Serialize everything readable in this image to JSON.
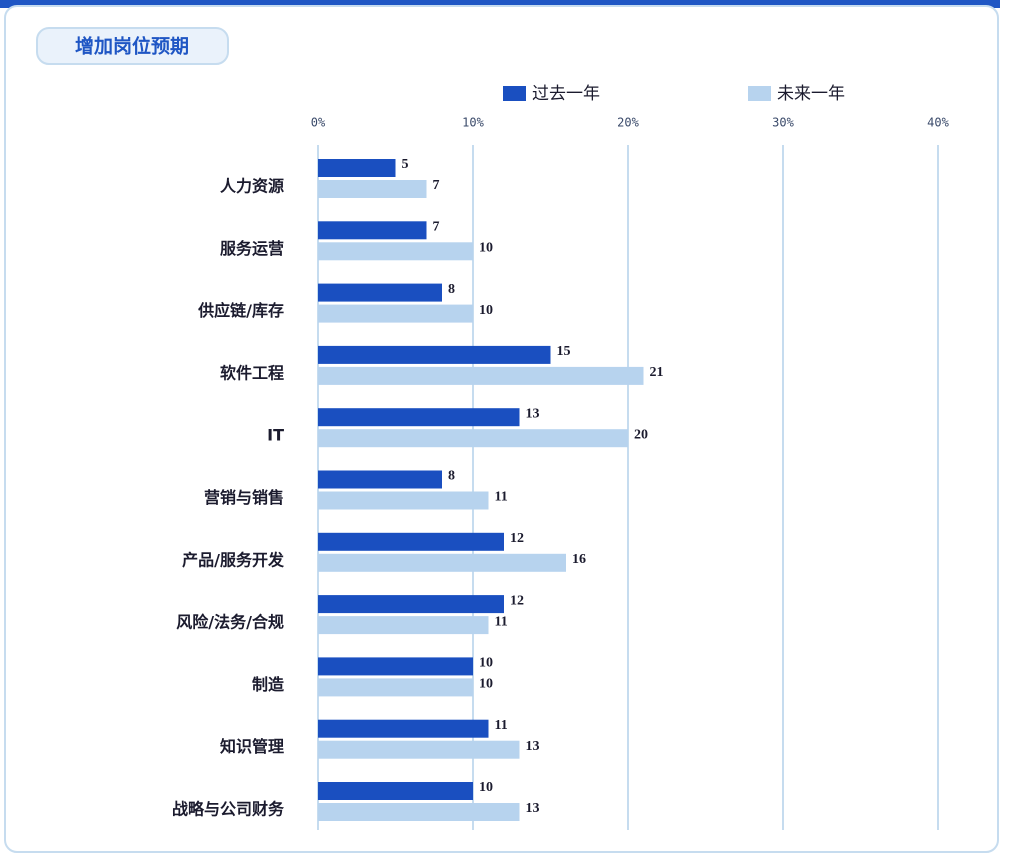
{
  "chart_data": {
    "type": "bar",
    "orientation": "horizontal",
    "title": "增加岗位预期",
    "categories": [
      "人力资源",
      "服务运营",
      "供应链/库存",
      "软件工程",
      "IT",
      "营销与销售",
      "产品/服务开发",
      "风险/法务/合规",
      "制造",
      "知识管理",
      "战略与公司财务"
    ],
    "series": [
      {
        "name": "过去一年",
        "color": "#1a4fc0",
        "values": [
          5,
          7,
          8,
          15,
          13,
          8,
          12,
          12,
          10,
          11,
          10
        ]
      },
      {
        "name": "未来一年",
        "color": "#b7d3ee",
        "values": [
          7,
          10,
          10,
          21,
          20,
          11,
          16,
          11,
          10,
          13,
          13
        ]
      }
    ],
    "xlim": [
      0,
      40
    ],
    "xticks": [
      {
        "value": 0,
        "label": "0%"
      },
      {
        "value": 10,
        "label": "10%"
      },
      {
        "value": 20,
        "label": "20%"
      },
      {
        "value": 30,
        "label": "30%"
      },
      {
        "value": 40,
        "label": "40%"
      }
    ],
    "grid": true,
    "legend": "top"
  }
}
